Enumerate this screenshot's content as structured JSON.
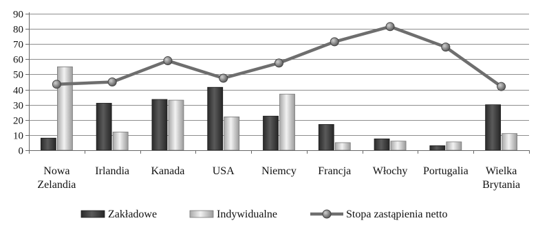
{
  "chart_data": {
    "type": "bar+line",
    "categories": [
      [
        "Nowa",
        "Zelandia"
      ],
      [
        "Irlandia"
      ],
      [
        "Kanada"
      ],
      [
        "USA"
      ],
      [
        "Niemcy"
      ],
      [
        "Francja"
      ],
      [
        "Włochy"
      ],
      [
        "Portugalia"
      ],
      [
        "Wielka",
        "Brytania"
      ]
    ],
    "series": [
      {
        "name": "Zakładowe",
        "type": "bar",
        "color": "#3d3d3d",
        "values": [
          8,
          31,
          33.5,
          41.5,
          22.5,
          17,
          7.5,
          3,
          30
        ]
      },
      {
        "name": "Indywidualne",
        "type": "bar",
        "color": "#c8c8c8",
        "values": [
          55,
          12,
          33,
          22,
          37,
          5,
          6,
          5.5,
          11
        ]
      },
      {
        "name": "Stopa zastąpienia netto",
        "type": "line",
        "color": "#6e6e6e",
        "values": [
          43.5,
          45,
          59,
          47.5,
          57.5,
          71.5,
          81.5,
          68,
          42
        ]
      }
    ],
    "yticks": [
      0,
      10,
      20,
      30,
      40,
      50,
      60,
      70,
      80,
      90
    ],
    "ylim": [
      0,
      90
    ],
    "grid": true,
    "legend_position": "bottom"
  }
}
